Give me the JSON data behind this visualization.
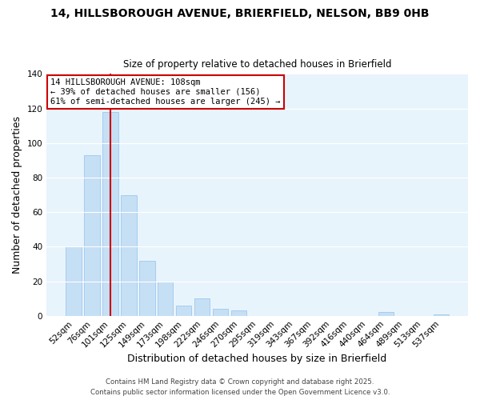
{
  "title_line1": "14, HILLSBOROUGH AVENUE, BRIERFIELD, NELSON, BB9 0HB",
  "title_line2": "Size of property relative to detached houses in Brierfield",
  "xlabel": "Distribution of detached houses by size in Brierfield",
  "ylabel": "Number of detached properties",
  "bar_labels": [
    "52sqm",
    "76sqm",
    "101sqm",
    "125sqm",
    "149sqm",
    "173sqm",
    "198sqm",
    "222sqm",
    "246sqm",
    "270sqm",
    "295sqm",
    "319sqm",
    "343sqm",
    "367sqm",
    "392sqm",
    "416sqm",
    "440sqm",
    "464sqm",
    "489sqm",
    "513sqm",
    "537sqm"
  ],
  "bar_values": [
    40,
    93,
    118,
    70,
    32,
    20,
    6,
    10,
    4,
    3,
    0,
    0,
    0,
    0,
    0,
    0,
    0,
    2,
    0,
    0,
    1
  ],
  "bar_color": "#c5dff5",
  "bar_edge_color": "#9ec8ef",
  "vline_color": "#cc0000",
  "ylim": [
    0,
    140
  ],
  "yticks": [
    0,
    20,
    40,
    60,
    80,
    100,
    120,
    140
  ],
  "annotation_text": "14 HILLSBOROUGH AVENUE: 108sqm\n← 39% of detached houses are smaller (156)\n61% of semi-detached houses are larger (245) →",
  "annotation_box_color": "#ffffff",
  "annotation_box_edge": "#cc0000",
  "footer_line1": "Contains HM Land Registry data © Crown copyright and database right 2025.",
  "footer_line2": "Contains public sector information licensed under the Open Government Licence v3.0.",
  "background_color": "#ffffff",
  "plot_bg_color": "#e8f4fc"
}
